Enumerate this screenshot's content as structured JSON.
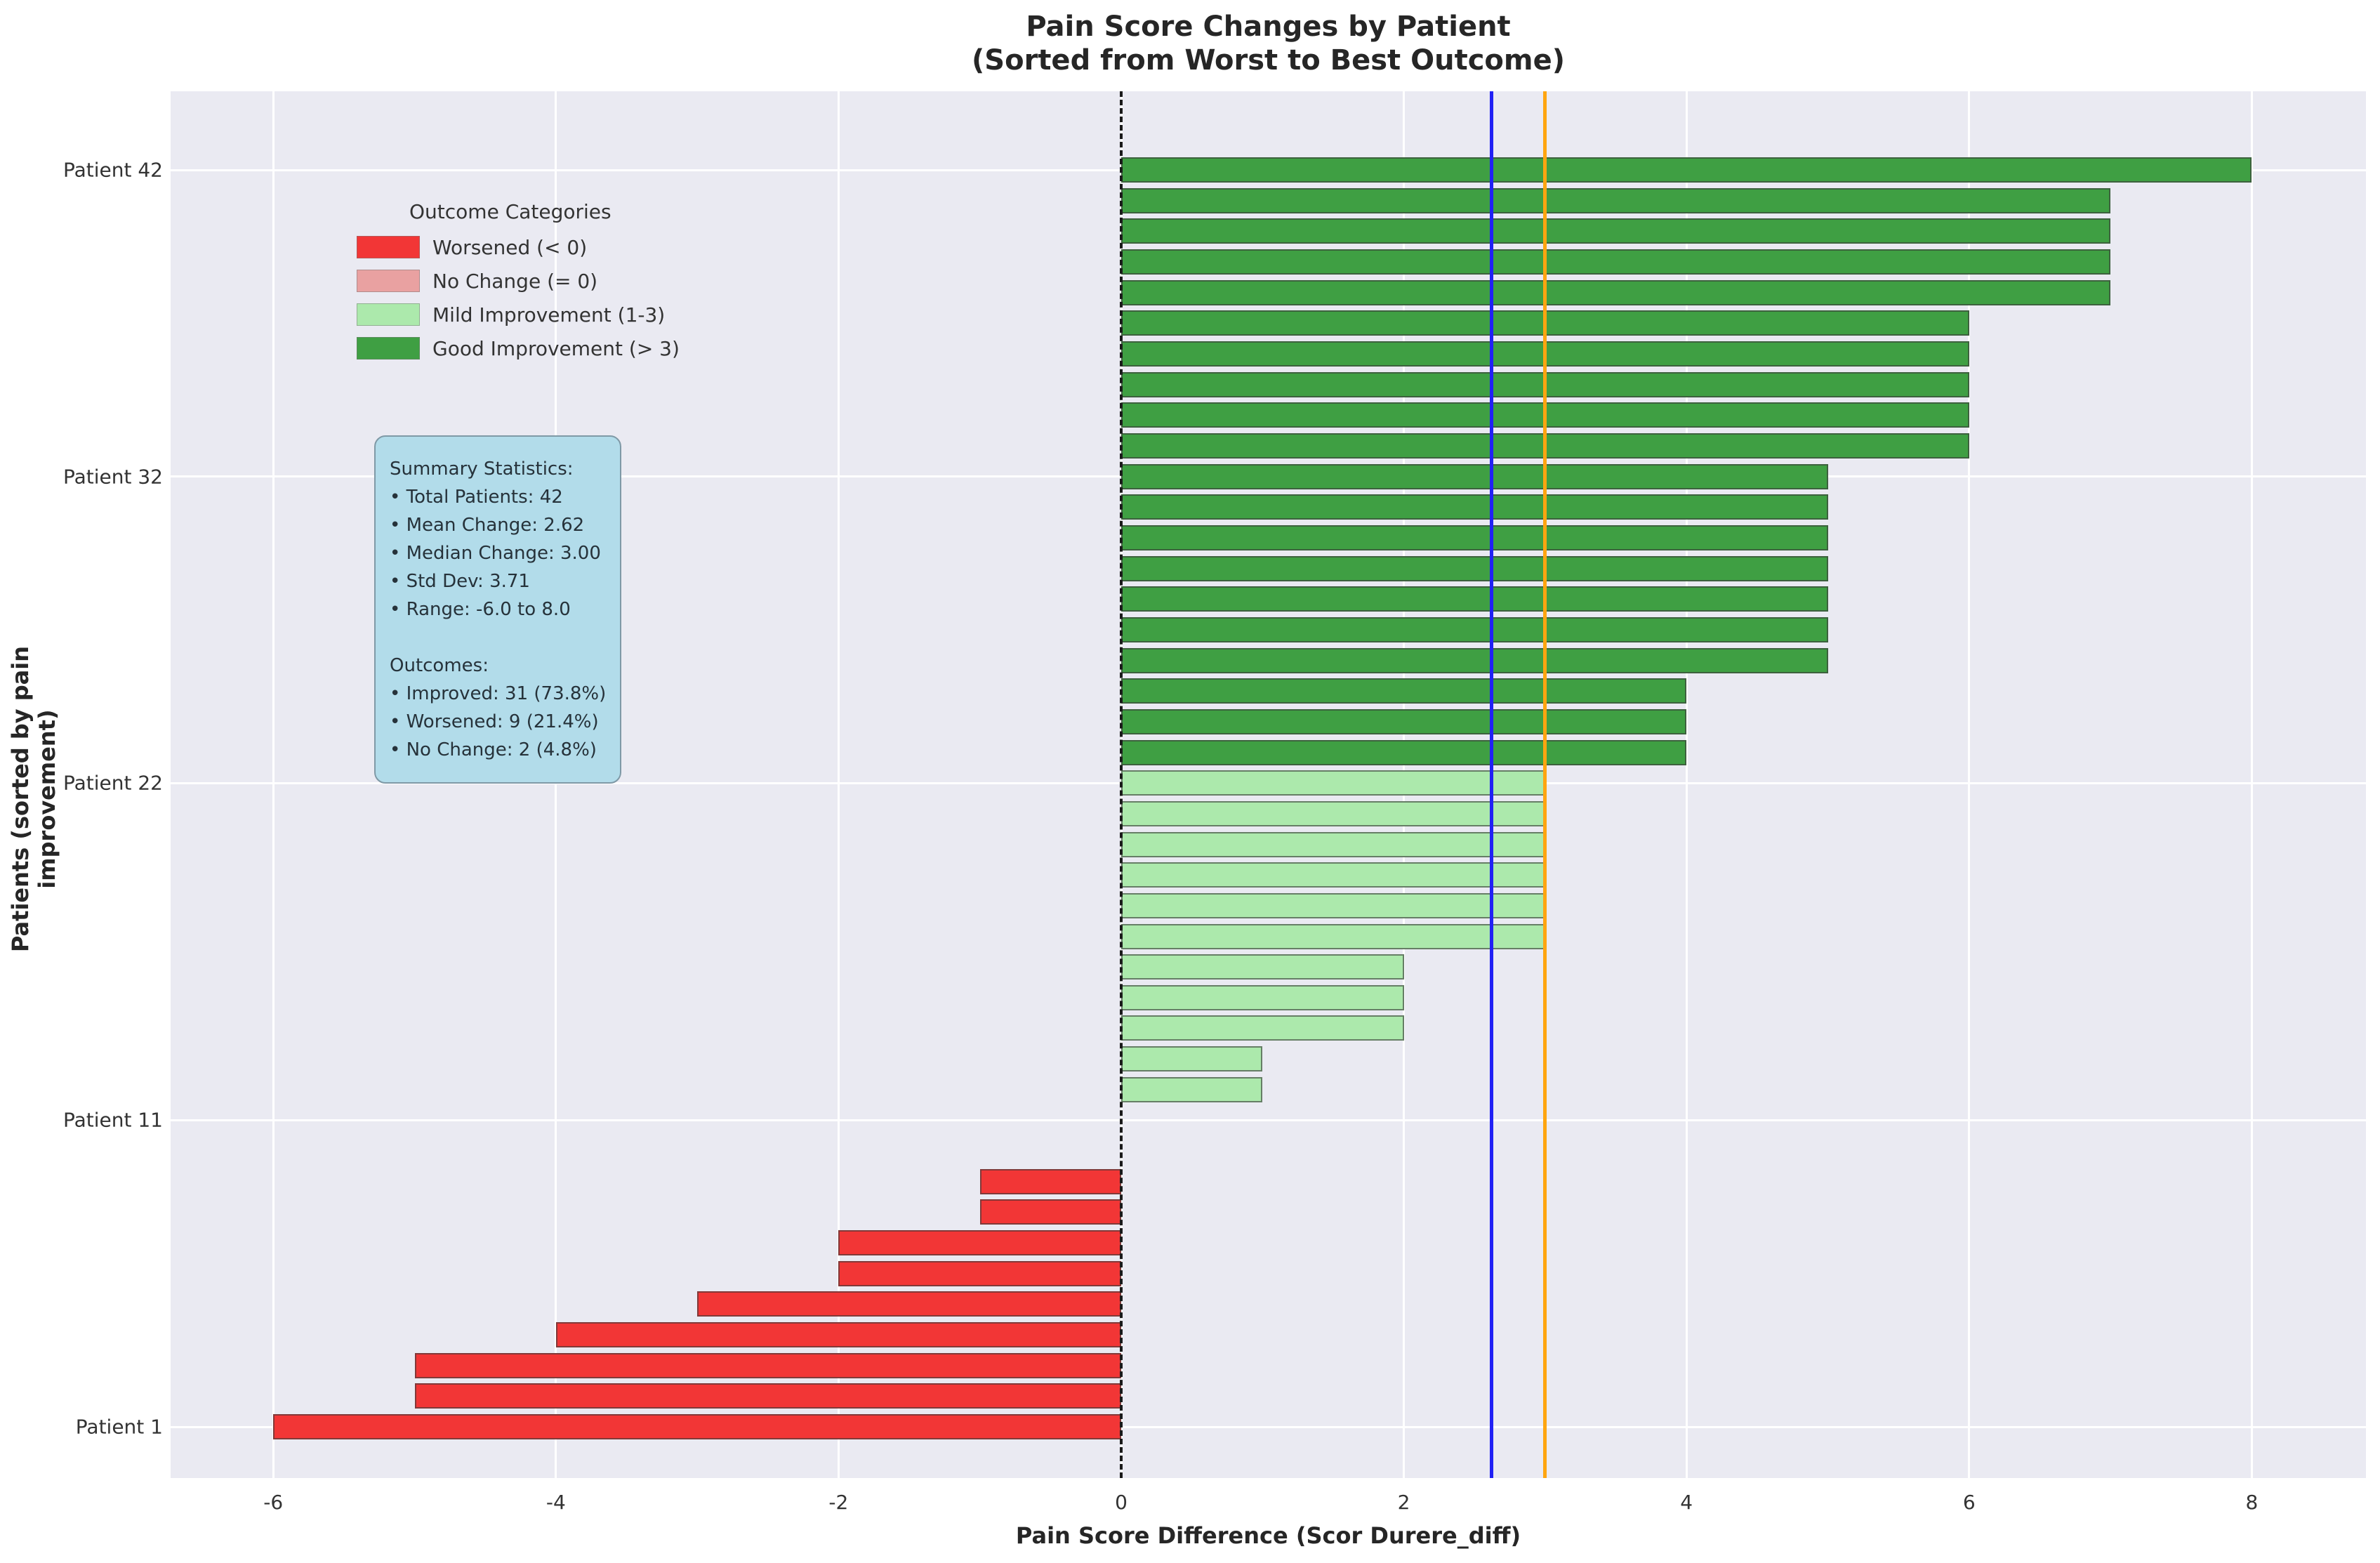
{
  "title": {
    "line1": "Pain Score Changes by Patient",
    "line2": "(Sorted from Worst to Best Outcome)"
  },
  "axes": {
    "x_label": "Pain Score Difference (Scor Durere_diff)",
    "y_label": "Patients (sorted by pain improvement)",
    "x_ticks": [
      -6,
      -4,
      -2,
      0,
      2,
      4,
      6,
      8
    ],
    "y_ticks": [
      {
        "label": "Patient 42",
        "row": 0
      },
      {
        "label": "Patient 32",
        "row": 10
      },
      {
        "label": "Patient 22",
        "row": 20
      },
      {
        "label": "Patient 11",
        "row": 31
      },
      {
        "label": "Patient 1",
        "row": 41
      }
    ]
  },
  "legend": {
    "title": "Outcome Categories",
    "entries": [
      {
        "label": "Worsened (< 0)",
        "color": "#f23636"
      },
      {
        "label": "No Change (= 0)",
        "color": "#e9a1a1"
      },
      {
        "label": "Mild Improvement (1-3)",
        "color": "#ace9ac"
      },
      {
        "label": "Good Improvement (> 3)",
        "color": "#3f9f43"
      }
    ]
  },
  "stats_box": {
    "lines": [
      "Summary Statistics:",
      "• Total Patients: 42",
      "• Mean Change: 2.62",
      "• Median Change: 3.00",
      "• Std Dev: 3.71",
      "• Range: -6.0 to 8.0",
      "",
      "Outcomes:",
      "• Improved: 31 (73.8%)",
      "• Worsened: 9 (21.4%)",
      "• No Change: 2 (4.8%)"
    ]
  },
  "chart_data": {
    "type": "bar",
    "orientation": "horizontal",
    "title": "Pain Score Changes by Patient (Sorted from Worst to Best Outcome)",
    "xlabel": "Pain Score Difference (Scor Durere_diff)",
    "ylabel": "Patients (sorted by pain improvement)",
    "xlim": [
      -6.7,
      8.8
    ],
    "grid": true,
    "order": "top_to_bottom_best_to_worst",
    "values": [
      8,
      7,
      7,
      7,
      7,
      6,
      6,
      6,
      6,
      6,
      5,
      5,
      5,
      5,
      5,
      5,
      5,
      4,
      4,
      4,
      3,
      3,
      3,
      3,
      3,
      3,
      2,
      2,
      2,
      1,
      1,
      0,
      0,
      -1,
      -1,
      -2,
      -2,
      -3,
      -4,
      -5,
      -5,
      -6
    ],
    "category_rule": "value<0: worsened; value=0: no_change; 1<=value<=3: mild; value>3: good",
    "category_colors": {
      "worsened": "#f23636",
      "no_change": "#e9a1a1",
      "mild": "#ace9ac",
      "good": "#3f9f43"
    },
    "reference_lines": [
      {
        "name": "zero",
        "value": 0,
        "color": "#1a1a1a",
        "style": "dashed"
      },
      {
        "name": "mean",
        "value": 2.62,
        "color": "#2121f5",
        "style": "solid"
      },
      {
        "name": "median",
        "value": 3.0,
        "color": "#ffa510",
        "style": "solid"
      }
    ],
    "plot_background": "#eaeaf2",
    "legend_position": "upper left"
  }
}
